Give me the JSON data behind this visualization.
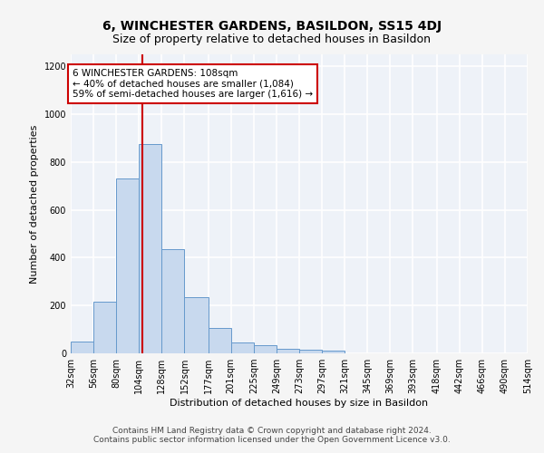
{
  "title": "6, WINCHESTER GARDENS, BASILDON, SS15 4DJ",
  "subtitle": "Size of property relative to detached houses in Basildon",
  "xlabel": "Distribution of detached houses by size in Basildon",
  "ylabel": "Number of detached properties",
  "bar_color": "#c8d9ee",
  "bar_edge_color": "#6699cc",
  "background_color": "#eef2f8",
  "fig_background_color": "#f5f5f5",
  "grid_color": "#ffffff",
  "bin_edges": [
    32,
    56,
    80,
    104,
    128,
    152,
    177,
    201,
    225,
    249,
    273,
    297,
    321,
    345,
    369,
    393,
    418,
    442,
    466,
    490,
    514
  ],
  "bin_labels": [
    "32sqm",
    "56sqm",
    "80sqm",
    "104sqm",
    "128sqm",
    "152sqm",
    "177sqm",
    "201sqm",
    "225sqm",
    "249sqm",
    "273sqm",
    "297sqm",
    "321sqm",
    "345sqm",
    "369sqm",
    "393sqm",
    "418sqm",
    "442sqm",
    "466sqm",
    "490sqm",
    "514sqm"
  ],
  "bar_heights": [
    50,
    215,
    730,
    875,
    435,
    235,
    105,
    45,
    35,
    20,
    15,
    10,
    0,
    0,
    0,
    0,
    0,
    0,
    0,
    0
  ],
  "vline_x": 108,
  "vline_color": "#cc0000",
  "annotation_line1": "6 WINCHESTER GARDENS: 108sqm",
  "annotation_line2": "← 40% of detached houses are smaller (1,084)",
  "annotation_line3": "59% of semi-detached houses are larger (1,616) →",
  "annotation_box_color": "#cc0000",
  "ylim": [
    0,
    1250
  ],
  "yticks": [
    0,
    200,
    400,
    600,
    800,
    1000,
    1200
  ],
  "footnote1": "Contains HM Land Registry data © Crown copyright and database right 2024.",
  "footnote2": "Contains public sector information licensed under the Open Government Licence v3.0.",
  "title_fontsize": 10,
  "subtitle_fontsize": 9,
  "axis_label_fontsize": 8,
  "tick_fontsize": 7,
  "annotation_fontsize": 7.5,
  "footnote_fontsize": 6.5
}
